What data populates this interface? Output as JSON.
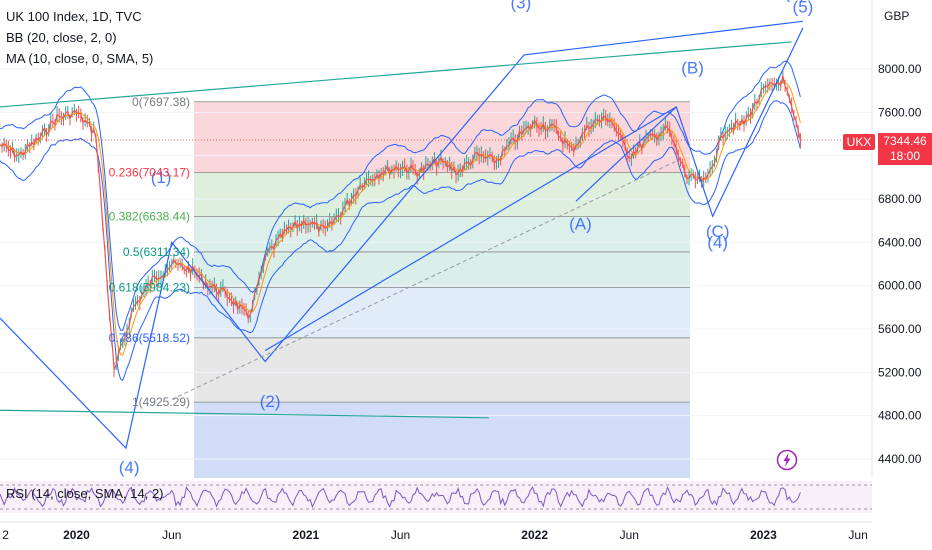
{
  "legend": {
    "symbol_line": "UK 100 Index, 1D, TVC",
    "bb_line": "BB (20, close, 2, 0)",
    "ma_line": "MA (10, close, 0, SMA, 5)"
  },
  "currency": "GBP",
  "price_badge": {
    "symbol": "UKX",
    "price": "7344.46",
    "countdown": "18:00"
  },
  "colors": {
    "up_line": "#ef5350",
    "bb": "#2962ff",
    "wave": "#2962ff",
    "trend_green": "#26a69a",
    "last_price": "#f23645"
  },
  "icons": {
    "alert": "lightning-bolt-icon"
  },
  "chart_data": {
    "type": "line",
    "y_axis": {
      "ticks": [
        4400,
        4800,
        5200,
        5600,
        6000,
        6400,
        6800,
        7200,
        7600,
        8000
      ],
      "tick_labels": [
        "4400.00",
        "4800.00",
        "5200.00",
        "5600.00",
        "6000.00",
        "6400.00",
        "6800.00",
        "7200.00",
        "7600.00",
        "8000.00"
      ],
      "ylim": [
        4250,
        8500
      ]
    },
    "x_axis": {
      "tick_labels": [
        "2",
        "2020",
        "Jun",
        "2021",
        "Jun",
        "2022",
        "Jun",
        "2023",
        "Jun"
      ],
      "xlim": [
        "2019-09-01",
        "2023-06-20"
      ]
    },
    "series": [
      {
        "values_by_month": [
          [
            "2019-09-01",
            7300
          ],
          [
            "2019-10-01",
            7200
          ],
          [
            "2019-11-01",
            7350
          ],
          [
            "2019-12-01",
            7550
          ],
          [
            "2020-01-01",
            7600
          ],
          [
            "2020-02-01",
            7400
          ],
          [
            "2020-03-01",
            5200
          ],
          [
            "2020-04-01",
            5800
          ],
          [
            "2020-05-01",
            6050
          ],
          [
            "2020-06-01",
            6200
          ],
          [
            "2020-07-01",
            6150
          ],
          [
            "2020-08-01",
            6000
          ],
          [
            "2020-09-01",
            5900
          ],
          [
            "2020-10-01",
            5700
          ],
          [
            "2020-11-01",
            6300
          ],
          [
            "2020-12-01",
            6500
          ],
          [
            "2021-01-01",
            6600
          ],
          [
            "2021-02-01",
            6500
          ],
          [
            "2021-03-01",
            6700
          ],
          [
            "2021-04-01",
            6950
          ],
          [
            "2021-05-01",
            7050
          ],
          [
            "2021-06-01",
            7100
          ],
          [
            "2021-07-01",
            7050
          ],
          [
            "2021-08-01",
            7150
          ],
          [
            "2021-09-01",
            7050
          ],
          [
            "2021-10-01",
            7200
          ],
          [
            "2021-11-01",
            7150
          ],
          [
            "2021-12-01",
            7350
          ],
          [
            "2022-01-01",
            7500
          ],
          [
            "2022-02-01",
            7450
          ],
          [
            "2022-03-01",
            7250
          ],
          [
            "2022-04-01",
            7500
          ],
          [
            "2022-05-01",
            7550
          ],
          [
            "2022-06-01",
            7200
          ],
          [
            "2022-07-01",
            7350
          ],
          [
            "2022-08-01",
            7450
          ],
          [
            "2022-09-01",
            7000
          ],
          [
            "2022-10-01",
            6950
          ],
          [
            "2022-11-01",
            7450
          ],
          [
            "2022-12-01",
            7500
          ],
          [
            "2023-01-01",
            7800
          ],
          [
            "2023-02-01",
            7900
          ],
          [
            "2023-03-01",
            7344
          ]
        ]
      }
    ],
    "fibonacci": [
      {
        "ratio": "0",
        "price": 7697.38,
        "label": "0(7697.38)",
        "fill": "#f8d0d4"
      },
      {
        "ratio": "0.236",
        "price": 7043.17,
        "label": "0.236(7043.17)",
        "fill": "#d8ecd8"
      },
      {
        "ratio": "0.382",
        "price": 6638.44,
        "label": "0.382(6638.44)",
        "fill": "#d6ece6"
      },
      {
        "ratio": "0.5",
        "price": 6311.34,
        "label": "0.5(6311.34)",
        "fill": "#d3ebe6"
      },
      {
        "ratio": "0.618",
        "price": 5984.23,
        "label": "0.618(5984.23)",
        "fill": "#dbeaf8"
      },
      {
        "ratio": "0.786",
        "price": 5518.52,
        "label": "0.786(5518.52)",
        "fill": "#e3e3e3"
      },
      {
        "ratio": "1",
        "price": 4925.29,
        "label": "1(4925.29)",
        "fill": "#c9d7f6"
      }
    ],
    "wave_labels": [
      "(1)",
      "(2)",
      "(3)",
      "(4)",
      "(5)",
      "(5)",
      "(A)",
      "(B)",
      "(C)",
      "(4)"
    ],
    "rsi": {
      "label": "RSI (14, close, SMA, 14, 2)"
    }
  }
}
